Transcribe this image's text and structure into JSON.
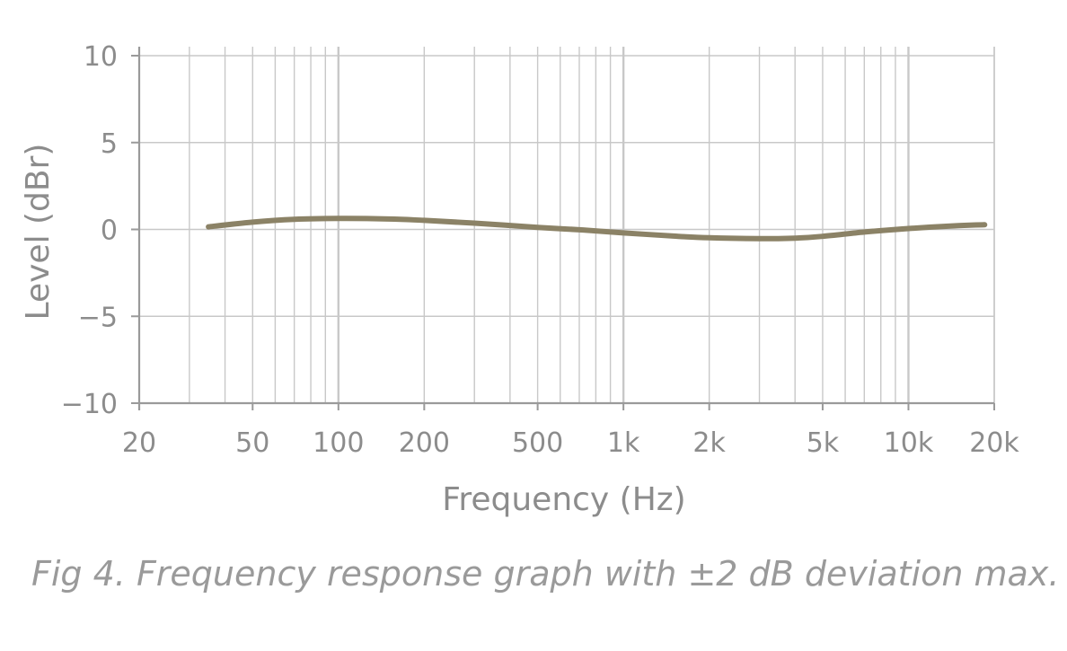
{
  "chart_data": {
    "type": "line",
    "xscale": "log",
    "grid": true,
    "xlabel": "Frequency (Hz)",
    "ylabel": "Level (dBr)",
    "xlim": [
      20,
      20000
    ],
    "ylim": [
      -10,
      10
    ],
    "x_ticks": [
      {
        "value": 20,
        "label": "20"
      },
      {
        "value": 50,
        "label": "50"
      },
      {
        "value": 100,
        "label": "100"
      },
      {
        "value": 200,
        "label": "200"
      },
      {
        "value": 500,
        "label": "500"
      },
      {
        "value": 1000,
        "label": "1k"
      },
      {
        "value": 2000,
        "label": "2k"
      },
      {
        "value": 5000,
        "label": "5k"
      },
      {
        "value": 10000,
        "label": "10k"
      },
      {
        "value": 20000,
        "label": "20k"
      }
    ],
    "y_ticks": [
      {
        "value": 10,
        "label": "10"
      },
      {
        "value": 5,
        "label": "5"
      },
      {
        "value": 0,
        "label": "0"
      },
      {
        "value": -5,
        "label": "−5"
      },
      {
        "value": -10,
        "label": "−10"
      }
    ],
    "series": [
      {
        "color": "#8b8266",
        "x": [
          35,
          50,
          70,
          100,
          150,
          200,
          300,
          500,
          700,
          1000,
          1500,
          2000,
          3000,
          4000,
          5000,
          7000,
          10000,
          15000,
          18500
        ],
        "y": [
          0.15,
          0.42,
          0.58,
          0.63,
          0.6,
          0.52,
          0.36,
          0.12,
          -0.02,
          -0.2,
          -0.38,
          -0.48,
          -0.53,
          -0.5,
          -0.4,
          -0.15,
          0.05,
          0.22,
          0.27
        ]
      }
    ],
    "colors": {
      "grid": "#c8c8c8",
      "axis": "#9a9a9a",
      "text": "#8c8c8c"
    }
  },
  "caption": "Fig 4. Frequency response graph with ±2 dB deviation max."
}
